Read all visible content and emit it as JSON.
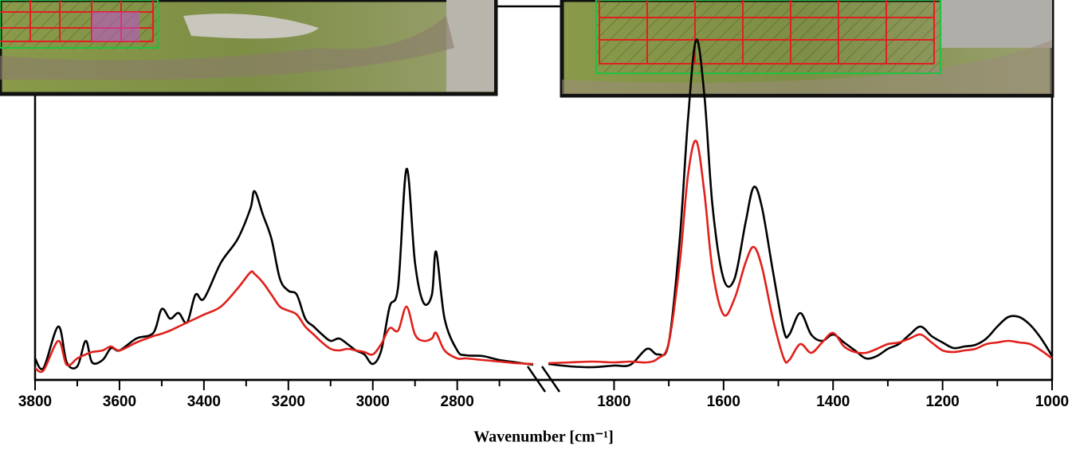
{
  "chart_data": {
    "type": "line",
    "x_label": "Wavenumber [cm⁻¹]",
    "broken_x_axis": true,
    "xlim": [
      [
        3800,
        2620
      ],
      [
        1920,
        1000
      ]
    ],
    "ylim": [
      0,
      432
    ],
    "xticks": [
      3800,
      3600,
      3400,
      3200,
      3000,
      2800,
      1800,
      1600,
      1400,
      1200,
      1000
    ],
    "xminorticks": [
      3700,
      3500,
      3300,
      3100,
      2900,
      2700,
      1700,
      1500,
      1300,
      1100
    ],
    "x": [
      3800,
      3780,
      3745,
      3725,
      3700,
      3680,
      3665,
      3640,
      3620,
      3600,
      3560,
      3520,
      3500,
      3480,
      3460,
      3440,
      3420,
      3400,
      3360,
      3320,
      3290,
      3280,
      3260,
      3240,
      3220,
      3200,
      3180,
      3160,
      3140,
      3120,
      3100,
      3080,
      3060,
      3040,
      3020,
      3000,
      2980,
      2960,
      2940,
      2920,
      2900,
      2880,
      2860,
      2850,
      2830,
      2800,
      2780,
      2740,
      2700,
      2660,
      2620,
      1920,
      1880,
      1840,
      1800,
      1770,
      1740,
      1720,
      1700,
      1680,
      1665,
      1650,
      1635,
      1620,
      1600,
      1580,
      1560,
      1545,
      1530,
      1510,
      1490,
      1480,
      1460,
      1440,
      1420,
      1400,
      1380,
      1360,
      1340,
      1320,
      1300,
      1280,
      1260,
      1240,
      1220,
      1200,
      1180,
      1160,
      1140,
      1120,
      1100,
      1080,
      1060,
      1040,
      1020,
      1000
    ],
    "series": [
      {
        "color": "#000000",
        "values": [
          27,
          15,
          67,
          22,
          17,
          49,
          22,
          25,
          40,
          37,
          52,
          59,
          89,
          77,
          84,
          72,
          107,
          102,
          147,
          177,
          215,
          237,
          207,
          177,
          127,
          112,
          107,
          77,
          67,
          57,
          49,
          52,
          45,
          37,
          32,
          20,
          37,
          92,
          117,
          265,
          147,
          97,
          107,
          161,
          77,
          37,
          31,
          30,
          25,
          22,
          19,
          20,
          17,
          16,
          18,
          19,
          39,
          32,
          47,
          177,
          327,
          427,
          357,
          217,
          127,
          127,
          197,
          242,
          217,
          137,
          62,
          57,
          84,
          57,
          49,
          57,
          47,
          37,
          27,
          30,
          39,
          45,
          57,
          67,
          55,
          47,
          40,
          42,
          44,
          52,
          67,
          79,
          79,
          69,
          52,
          30
        ]
      },
      {
        "color": "#e0201b",
        "values": [
          15,
          12,
          49,
          19,
          27,
          32,
          35,
          37,
          42,
          37,
          47,
          55,
          58,
          62,
          67,
          72,
          77,
          82,
          92,
          115,
          135,
          133,
          122,
          107,
          92,
          87,
          82,
          67,
          57,
          47,
          39,
          37,
          39,
          37,
          35,
          32,
          45,
          65,
          62,
          92,
          57,
          49,
          52,
          59,
          37,
          27,
          27,
          25,
          23,
          21,
          20,
          21,
          22,
          23,
          22,
          23,
          22,
          27,
          47,
          147,
          257,
          300,
          235,
          137,
          82,
          102,
          147,
          167,
          142,
          77,
          27,
          25,
          45,
          34,
          47,
          59,
          42,
          35,
          34,
          39,
          45,
          47,
          52,
          57,
          47,
          37,
          35,
          37,
          39,
          45,
          47,
          49,
          47,
          45,
          37,
          27
        ]
      }
    ]
  }
}
